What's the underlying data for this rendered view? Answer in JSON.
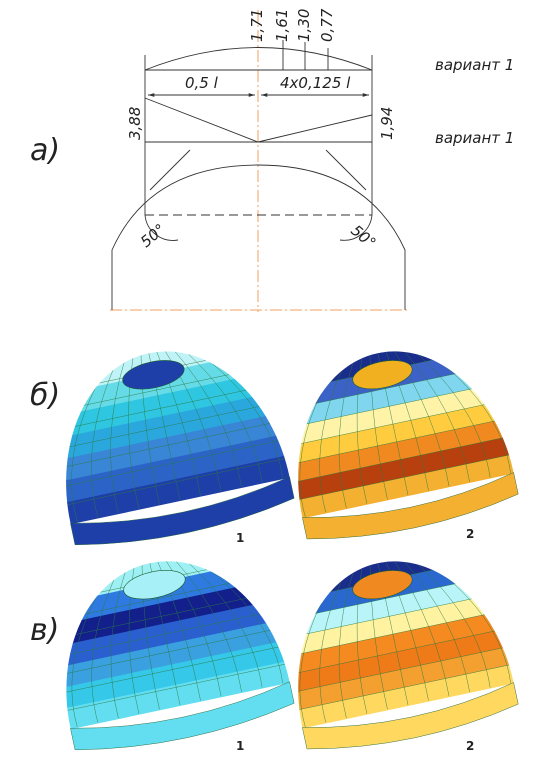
{
  "panel_a": {
    "label": "а)",
    "variants": [
      "вариант 1",
      "вариант 1"
    ],
    "top_dimensions": [
      "1,71",
      "1,61",
      "1,30",
      "0,77"
    ],
    "left_span": "0,5 l",
    "right_span": "4x0,125 l",
    "left_height": "3,88",
    "right_height": "1,94",
    "angles": [
      "50°",
      "50°"
    ]
  },
  "panel_b": {
    "label": "б)",
    "shells": [
      "1",
      "2"
    ]
  },
  "panel_v": {
    "label": "в)",
    "shells": [
      "1",
      "2"
    ]
  }
}
